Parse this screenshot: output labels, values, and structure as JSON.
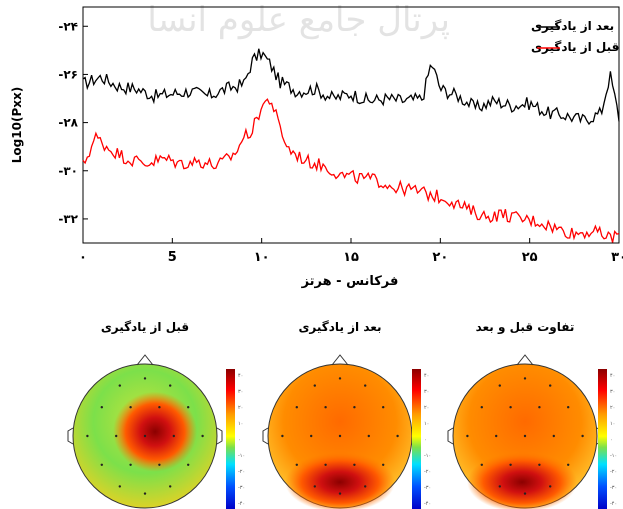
{
  "watermark": "پرتال جامع علوم انسانی",
  "chart_data": [
    {
      "type": "line",
      "xlabel": "فرکانس - هرتز",
      "ylabel": "Log10(Pxx)",
      "xlim": [
        0,
        30
      ],
      "ylim": [
        -33,
        -23.2
      ],
      "x_ticks": [
        {
          "value": 0,
          "label": "۰"
        },
        {
          "value": 5,
          "label": "5"
        },
        {
          "value": 10,
          "label": "۱۰"
        },
        {
          "value": 15,
          "label": "۱۵"
        },
        {
          "value": 20,
          "label": "۲۰"
        },
        {
          "value": 25,
          "label": "۲۵"
        },
        {
          "value": 30,
          "label": "۳۰"
        }
      ],
      "y_ticks": [
        {
          "value": -24,
          "label": "-۲۴"
        },
        {
          "value": -26,
          "label": "-۲۶"
        },
        {
          "value": -28,
          "label": "-۲۸"
        },
        {
          "value": -30,
          "label": "-۳۰"
        },
        {
          "value": -32,
          "label": "-۳۲"
        }
      ],
      "legend_position": "top-right",
      "series": [
        {
          "name": "بعد از یادگیری",
          "color": "#000000",
          "x": [
            0,
            1,
            2,
            3,
            4,
            5,
            6,
            7,
            8,
            9,
            9.5,
            10,
            10.5,
            11,
            12,
            13,
            14,
            15,
            16,
            17,
            18,
            19,
            19.5,
            20,
            21,
            22,
            23,
            24,
            25,
            26,
            27,
            28,
            29,
            29.5,
            30
          ],
          "y": [
            -26.4,
            -26.1,
            -26.5,
            -26.6,
            -26.9,
            -26.8,
            -26.7,
            -26.9,
            -26.6,
            -26.4,
            -25.4,
            -25.1,
            -25.6,
            -26.3,
            -26.7,
            -26.6,
            -27,
            -26.8,
            -27.1,
            -27,
            -27.1,
            -27,
            -25.5,
            -26.6,
            -26.9,
            -27.4,
            -27.1,
            -27.3,
            -27.2,
            -27.6,
            -27.7,
            -27.9,
            -27.6,
            -26,
            -27.8
          ]
        },
        {
          "name": "قبل از یادگیری",
          "color": "#ff0000",
          "x": [
            0,
            0.7,
            1.5,
            2.5,
            3.5,
            4.5,
            5.5,
            6.5,
            7.5,
            8.5,
            9,
            9.5,
            10,
            10.5,
            11,
            11.5,
            12.5,
            13.5,
            14.5,
            15.5,
            16.5,
            17.5,
            18.5,
            19.5,
            20.5,
            21.5,
            22.5,
            23.5,
            24.5,
            25.5,
            26.5,
            27.5,
            28.5,
            29.5,
            30
          ],
          "y": [
            -29.8,
            -28.6,
            -29.1,
            -29.5,
            -29.7,
            -29.5,
            -29.7,
            -29.6,
            -29.8,
            -29.3,
            -28.6,
            -28.3,
            -27.3,
            -27,
            -28.2,
            -29.1,
            -29.6,
            -29.8,
            -30.2,
            -30.3,
            -30.4,
            -30.7,
            -30.8,
            -31,
            -31.2,
            -31.6,
            -31.9,
            -31.8,
            -32,
            -32.1,
            -32.4,
            -32.6,
            -32.5,
            -32.8,
            -32.6
          ]
        }
      ]
    },
    {
      "type": "heatmap",
      "maps": [
        {
          "title": "قبل از یادگیری",
          "hotspot": {
            "u": 0.57,
            "v": 0.47,
            "strength": 0.9
          }
        },
        {
          "title": "بعد از یادگیری",
          "hotspot": {
            "u": 0.5,
            "v": 0.82,
            "strength": 0.9
          }
        },
        {
          "title": "تفاوت قبل و بعد",
          "hotspot": {
            "u": 0.48,
            "v": 0.82,
            "strength": 0.9
          }
        }
      ],
      "colorbar_labels": [
        "۴۰",
        "۳۰",
        "۲۰",
        "۱۰",
        "۰",
        "-۱۰",
        "-۲۰",
        "-۳۰",
        "-۴۰"
      ],
      "colors": {
        "low": "#0000c8",
        "mid": "#7ce04a",
        "high": "#8b0000"
      }
    }
  ]
}
